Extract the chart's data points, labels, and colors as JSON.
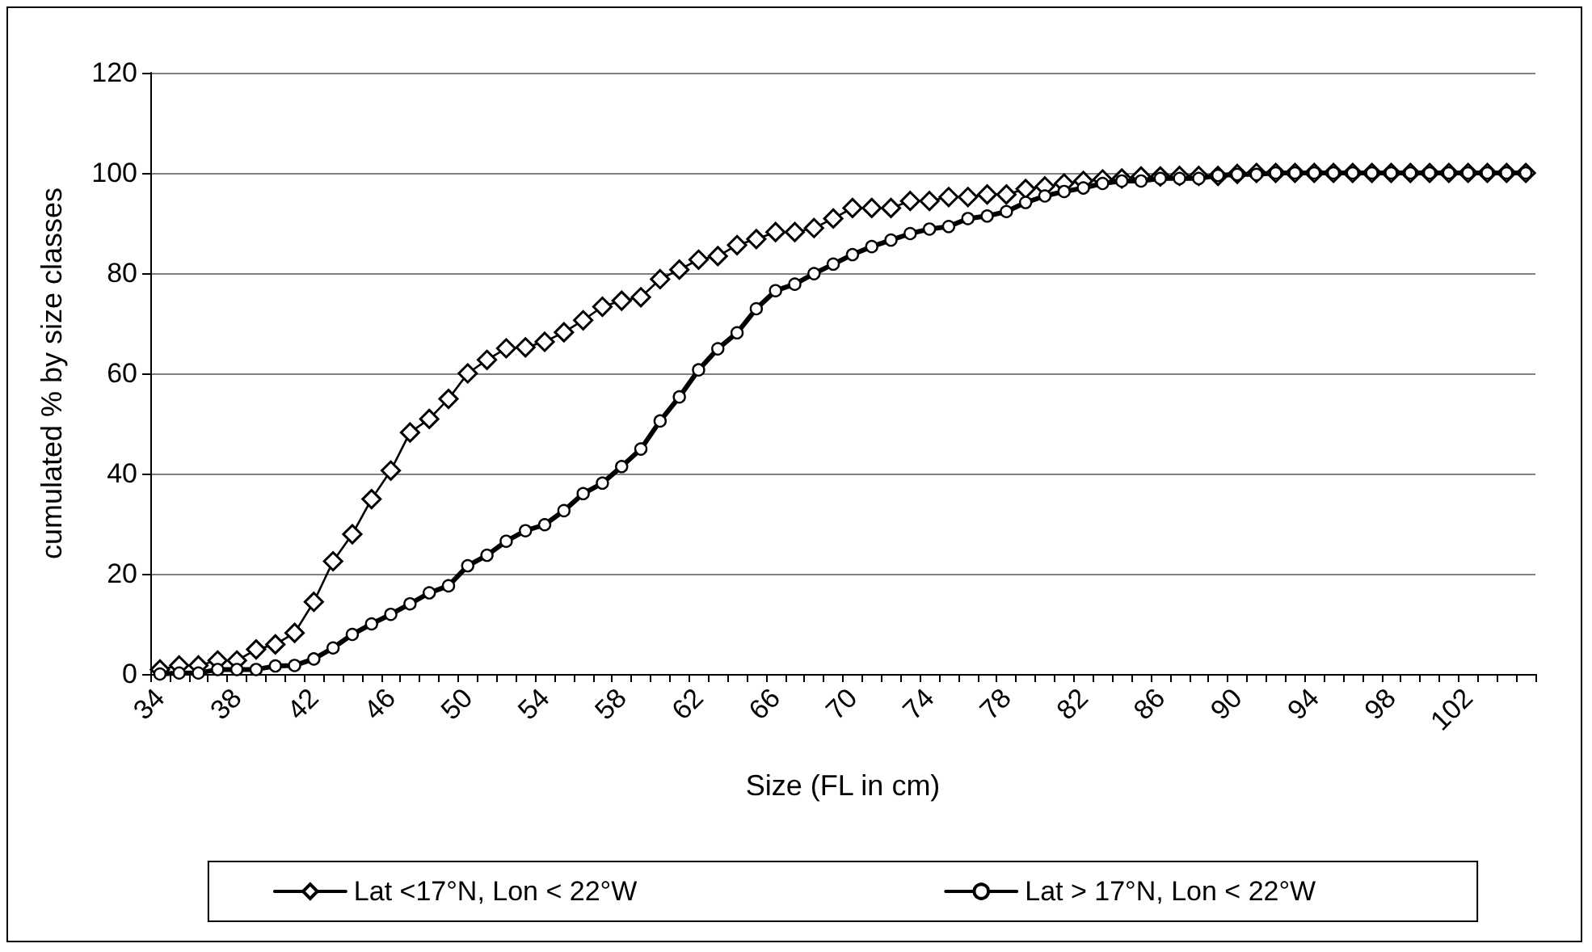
{
  "chart_data": {
    "type": "line",
    "xlabel": "Size (FL in cm)",
    "ylabel": "cumulated % by size classes",
    "categories": [
      "34",
      null,
      null,
      null,
      "38",
      null,
      null,
      null,
      "42",
      null,
      null,
      null,
      "46",
      null,
      null,
      null,
      "50",
      null,
      null,
      null,
      "54",
      null,
      null,
      null,
      "58",
      null,
      null,
      null,
      "62",
      null,
      null,
      null,
      "66",
      null,
      null,
      null,
      "70",
      null,
      null,
      null,
      "74",
      null,
      null,
      null,
      "78",
      null,
      null,
      null,
      "82",
      null,
      null,
      null,
      "86",
      null,
      null,
      null,
      "90",
      null,
      null,
      null,
      "94",
      null,
      null,
      null,
      "98",
      null,
      null,
      null,
      "102",
      null,
      null,
      null
    ],
    "series": [
      {
        "name": "Lat <17°N, Lon < 22°W",
        "color": "#000000",
        "marker": "diamond",
        "values": [
          0.9,
          1.7,
          1.7,
          2.7,
          2.7,
          4.9,
          5.9,
          8.2,
          14.4,
          22.5,
          27.9,
          34.9,
          40.6,
          48.2,
          50.9,
          54.9,
          60,
          62.7,
          65,
          65.2,
          66.3,
          68.2,
          70.6,
          73.3,
          74.5,
          75.2,
          78.8,
          80.7,
          82.7,
          83.4,
          85.6,
          86.8,
          88.2,
          88.2,
          89,
          90.9,
          93,
          93,
          93,
          94.4,
          94.4,
          95.2,
          95.2,
          95.7,
          95.7,
          96.8,
          97.3,
          97.9,
          98.4,
          98.7,
          98.9,
          99.3,
          99.3,
          99.4,
          99.4,
          99.4,
          99.8,
          100,
          100,
          100,
          100,
          100,
          100,
          100,
          100,
          100,
          100,
          100,
          100,
          100,
          100,
          100
        ]
      },
      {
        "name": "Lat > 17°N, Lon < 22°W",
        "color": "#000000",
        "marker": "circle",
        "values": [
          0,
          0.2,
          0.2,
          0.9,
          0.9,
          0.9,
          1.6,
          1.7,
          3,
          5.2,
          7.9,
          10,
          11.9,
          14,
          16.2,
          17.6,
          21.6,
          23.7,
          26.5,
          28.6,
          29.8,
          32.6,
          36,
          38.1,
          41.4,
          44.9,
          50.5,
          55.3,
          60.7,
          64.9,
          68.1,
          72.9,
          76.5,
          77.8,
          79.9,
          81.8,
          83.7,
          85.3,
          86.6,
          87.9,
          88.8,
          89.3,
          90.9,
          91.4,
          92.3,
          94.1,
          95.4,
          96.3,
          97,
          97.9,
          98.4,
          98.4,
          98.9,
          98.9,
          98.9,
          99.5,
          99.7,
          99.7,
          100,
          100,
          100,
          100,
          100,
          100,
          100,
          100,
          100,
          100,
          100,
          100,
          100,
          100
        ]
      }
    ],
    "ylim": [
      0,
      120
    ],
    "yticks": [
      0,
      20,
      40,
      60,
      80,
      100,
      120
    ],
    "grid": "y",
    "legend": "bottom"
  }
}
